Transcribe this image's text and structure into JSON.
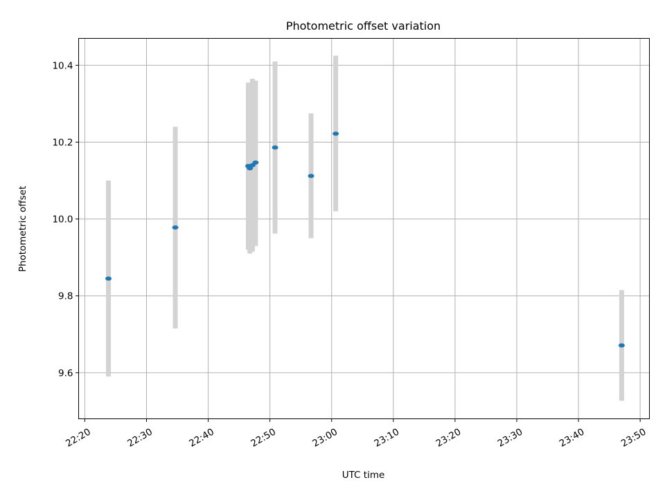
{
  "chart_data": {
    "type": "scatter",
    "title": "Photometric offset variation",
    "xlabel": "UTC time",
    "ylabel": "Photometric offset",
    "x_axis_kind": "time",
    "xlim": [
      "22:19:00",
      "23:51:30"
    ],
    "ylim": [
      9.48,
      10.47
    ],
    "x_tick_labels": [
      "22:20",
      "22:30",
      "22:40",
      "22:50",
      "23:00",
      "23:10",
      "23:20",
      "23:30",
      "23:40",
      "23:50"
    ],
    "y_ticks": [
      9.6,
      9.8,
      10.0,
      10.2,
      10.4
    ],
    "y_tick_labels": [
      "9.6",
      "9.8",
      "10.0",
      "10.2",
      "10.4"
    ],
    "grid": true,
    "point_color": "#1f77b4",
    "errorbar_color": "#d3d3d3",
    "points": [
      {
        "time": "22:23:50",
        "y": 9.845,
        "err_low": 9.59,
        "err_high": 10.1
      },
      {
        "time": "22:34:40",
        "y": 9.978,
        "err_low": 9.715,
        "err_high": 10.24
      },
      {
        "time": "22:46:30",
        "y": 10.138,
        "err_low": 9.92,
        "err_high": 10.355
      },
      {
        "time": "22:46:45",
        "y": 10.132,
        "err_low": 9.91,
        "err_high": 10.35
      },
      {
        "time": "22:47:10",
        "y": 10.14,
        "err_low": 9.915,
        "err_high": 10.365
      },
      {
        "time": "22:47:40",
        "y": 10.147,
        "err_low": 9.93,
        "err_high": 10.36
      },
      {
        "time": "22:50:50",
        "y": 10.186,
        "err_low": 9.962,
        "err_high": 10.41
      },
      {
        "time": "22:56:40",
        "y": 10.112,
        "err_low": 9.95,
        "err_high": 10.275
      },
      {
        "time": "23:00:40",
        "y": 10.222,
        "err_low": 10.02,
        "err_high": 10.425
      },
      {
        "time": "23:47:00",
        "y": 9.671,
        "err_low": 9.527,
        "err_high": 9.815
      }
    ]
  }
}
